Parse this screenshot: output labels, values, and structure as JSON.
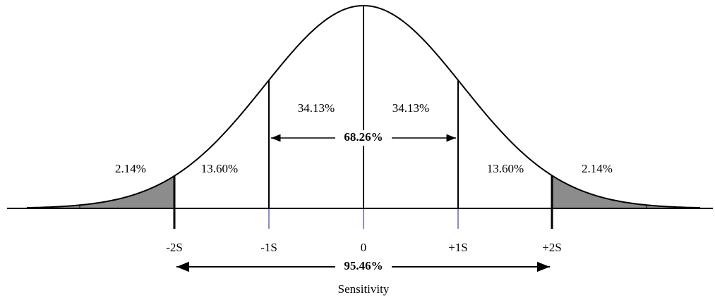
{
  "percentages": [
    "2.14%",
    "13.60%",
    "34.13%",
    "34.13%",
    "13.60%",
    "2.14%"
  ],
  "spans": [
    "68.26%",
    "95.46%"
  ],
  "ticks": [
    "-2S",
    "-1S",
    "0",
    "+1S",
    "+2S"
  ],
  "axis_label": "Sensitivity"
}
